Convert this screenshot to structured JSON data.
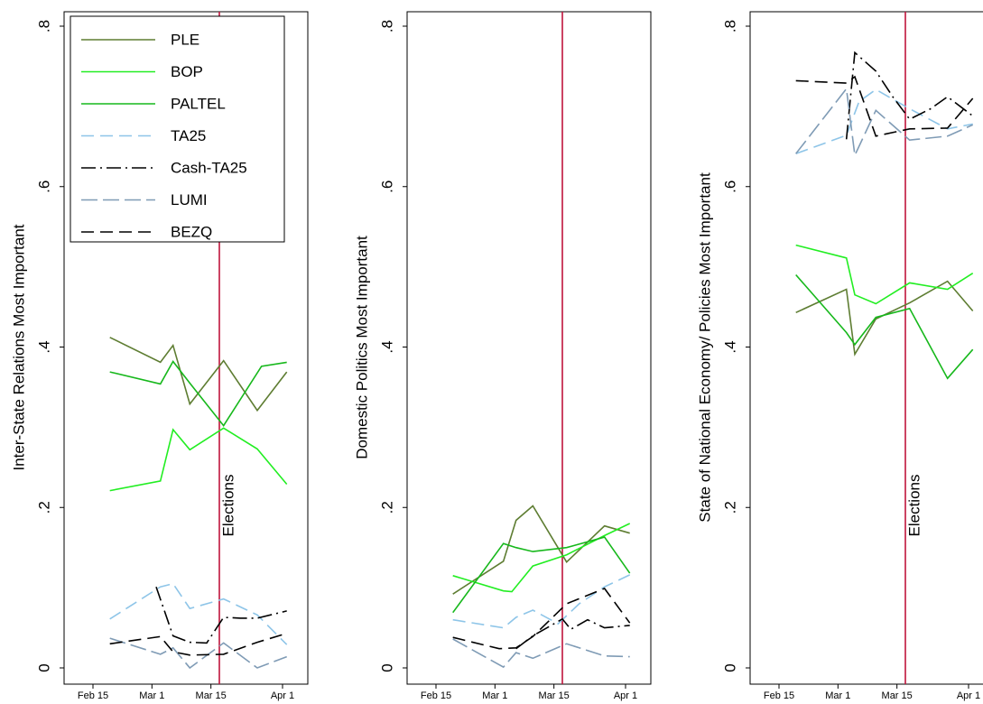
{
  "chart_data": {
    "type": "line",
    "xlim": [
      "2015-02-09",
      "2015-04-05"
    ],
    "ylim": [
      0,
      0.8
    ],
    "x_ticks": [
      {
        "date": "2015-02-15",
        "label": "Feb 15"
      },
      {
        "date": "2015-03-01",
        "label": "Mar 1"
      },
      {
        "date": "2015-03-15",
        "label": "Mar 15"
      },
      {
        "date": "2015-04-01",
        "label": "Apr 1"
      }
    ],
    "y_ticks": [
      {
        "value": 0,
        "label": "0"
      },
      {
        "value": 0.2,
        "label": ".2"
      },
      {
        "value": 0.4,
        "label": ".4"
      },
      {
        "value": 0.6,
        "label": ".6"
      },
      {
        "value": 0.8,
        "label": ".8"
      }
    ],
    "event_line": {
      "date": "2015-03-17",
      "label": "Elections",
      "color": "#c0143c"
    },
    "series_styles": [
      {
        "name": "PLE",
        "color": "#5e7d32",
        "dash": "solid"
      },
      {
        "name": "BOP",
        "color": "#22ee22",
        "dash": "solid"
      },
      {
        "name": "PALTEL",
        "color": "#17b81c",
        "dash": "solid"
      },
      {
        "name": "TA25",
        "color": "#8ec5e8",
        "dash": "dash"
      },
      {
        "name": "Cash-TA25",
        "color": "#000000",
        "dash": "dashdot"
      },
      {
        "name": "LUMI",
        "color": "#7f9bb5",
        "dash": "longdash"
      },
      {
        "name": "BEZQ",
        "color": "#000000",
        "dash": "dash"
      }
    ],
    "legend_position": "top-left of first panel",
    "panels": [
      {
        "ylabel": "Inter-State Relations Most Important",
        "show_event_label": true,
        "series": [
          {
            "name": "PLE",
            "x": [
              "2015-02-19",
              "2015-03-03",
              "2015-03-06",
              "2015-03-10",
              "2015-03-18",
              "2015-03-26",
              "2015-04-02"
            ],
            "y": [
              0.412,
              0.381,
              0.402,
              0.329,
              0.383,
              0.321,
              0.369
            ]
          },
          {
            "name": "BOP",
            "x": [
              "2015-02-19",
              "2015-03-03",
              "2015-03-06",
              "2015-03-10",
              "2015-03-18",
              "2015-03-26",
              "2015-04-02"
            ],
            "y": [
              0.221,
              0.233,
              0.297,
              0.272,
              0.299,
              0.273,
              0.229
            ]
          },
          {
            "name": "PALTEL",
            "x": [
              "2015-02-19",
              "2015-03-03",
              "2015-03-06",
              "2015-03-10",
              "2015-03-18",
              "2015-03-27",
              "2015-04-02"
            ],
            "y": [
              0.369,
              0.354,
              0.382,
              0.355,
              0.302,
              0.376,
              0.381
            ]
          },
          {
            "name": "TA25",
            "x": [
              "2015-02-19",
              "2015-03-03",
              "2015-03-06",
              "2015-03-10",
              "2015-03-18",
              "2015-03-26",
              "2015-04-02"
            ],
            "y": [
              0.061,
              0.101,
              0.105,
              0.074,
              0.086,
              0.066,
              0.029
            ]
          },
          {
            "name": "Cash-TA25",
            "x": [
              "2015-03-02",
              "2015-03-06",
              "2015-03-10",
              "2015-03-14",
              "2015-03-18",
              "2015-03-22",
              "2015-03-26",
              "2015-04-02"
            ],
            "y": [
              0.101,
              0.04,
              0.032,
              0.031,
              0.063,
              0.062,
              0.062,
              0.071
            ]
          },
          {
            "name": "LUMI",
            "x": [
              "2015-02-19",
              "2015-03-03",
              "2015-03-06",
              "2015-03-10",
              "2015-03-18",
              "2015-03-26",
              "2015-04-02"
            ],
            "y": [
              0.037,
              0.017,
              0.025,
              0.0,
              0.031,
              0.0,
              0.014
            ]
          },
          {
            "name": "BEZQ",
            "x": [
              "2015-02-19",
              "2015-03-03",
              "2015-03-06",
              "2015-03-10",
              "2015-03-18",
              "2015-03-26",
              "2015-04-02"
            ],
            "y": [
              0.03,
              0.039,
              0.02,
              0.016,
              0.017,
              0.032,
              0.043
            ]
          }
        ]
      },
      {
        "ylabel": "Domestic Politics Most Important",
        "show_event_label": false,
        "series": [
          {
            "name": "PLE",
            "x": [
              "2015-02-19",
              "2015-03-03",
              "2015-03-06",
              "2015-03-10",
              "2015-03-18",
              "2015-03-27",
              "2015-04-02"
            ],
            "y": [
              0.092,
              0.133,
              0.184,
              0.202,
              0.132,
              0.177,
              0.168
            ]
          },
          {
            "name": "BOP",
            "x": [
              "2015-02-19",
              "2015-03-03",
              "2015-03-05",
              "2015-03-10",
              "2015-03-18",
              "2015-03-27",
              "2015-04-02"
            ],
            "y": [
              0.115,
              0.096,
              0.095,
              0.127,
              0.141,
              0.165,
              0.18
            ]
          },
          {
            "name": "PALTEL",
            "x": [
              "2015-02-19",
              "2015-03-03",
              "2015-03-06",
              "2015-03-10",
              "2015-03-18",
              "2015-03-27",
              "2015-04-02"
            ],
            "y": [
              0.069,
              0.155,
              0.15,
              0.145,
              0.15,
              0.163,
              0.118
            ]
          },
          {
            "name": "TA25",
            "x": [
              "2015-02-19",
              "2015-03-03",
              "2015-03-06",
              "2015-03-10",
              "2015-03-16",
              "2015-03-21",
              "2015-03-27",
              "2015-04-02"
            ],
            "y": [
              0.06,
              0.05,
              0.063,
              0.072,
              0.055,
              0.08,
              0.101,
              0.116
            ]
          },
          {
            "name": "Cash-TA25",
            "x": [
              "2015-03-06",
              "2015-03-10",
              "2015-03-17",
              "2015-03-19",
              "2015-03-23",
              "2015-03-27",
              "2015-04-02"
            ],
            "y": [
              0.024,
              0.04,
              0.061,
              0.048,
              0.06,
              0.05,
              0.053
            ]
          },
          {
            "name": "LUMI",
            "x": [
              "2015-02-19",
              "2015-03-03",
              "2015-03-06",
              "2015-03-10",
              "2015-03-18",
              "2015-03-27",
              "2015-04-02"
            ],
            "y": [
              0.036,
              0.001,
              0.019,
              0.012,
              0.03,
              0.015,
              0.014
            ]
          },
          {
            "name": "BEZQ",
            "x": [
              "2015-02-19",
              "2015-03-02",
              "2015-03-06",
              "2015-03-10",
              "2015-03-18",
              "2015-03-27",
              "2015-04-02"
            ],
            "y": [
              0.038,
              0.024,
              0.025,
              0.039,
              0.08,
              0.099,
              0.056
            ]
          }
        ]
      },
      {
        "ylabel": "State of National Economy/ Policies Most Important",
        "show_event_label": true,
        "series": [
          {
            "name": "PLE",
            "x": [
              "2015-02-19",
              "2015-03-03",
              "2015-03-05",
              "2015-03-10",
              "2015-03-18",
              "2015-03-27",
              "2015-04-02"
            ],
            "y": [
              0.443,
              0.472,
              0.391,
              0.435,
              0.455,
              0.482,
              0.445
            ]
          },
          {
            "name": "BOP",
            "x": [
              "2015-02-19",
              "2015-03-03",
              "2015-03-05",
              "2015-03-10",
              "2015-03-18",
              "2015-03-27",
              "2015-04-02"
            ],
            "y": [
              0.527,
              0.511,
              0.465,
              0.454,
              0.48,
              0.472,
              0.492
            ]
          },
          {
            "name": "PALTEL",
            "x": [
              "2015-02-19",
              "2015-03-03",
              "2015-03-05",
              "2015-03-10",
              "2015-03-18",
              "2015-03-27",
              "2015-04-02"
            ],
            "y": [
              0.49,
              0.418,
              0.403,
              0.437,
              0.448,
              0.361,
              0.397
            ]
          },
          {
            "name": "TA25",
            "x": [
              "2015-02-19",
              "2015-03-03",
              "2015-03-06",
              "2015-03-10",
              "2015-03-18",
              "2015-03-27",
              "2015-04-02"
            ],
            "y": [
              0.641,
              0.664,
              0.706,
              0.721,
              0.697,
              0.672,
              0.678
            ]
          },
          {
            "name": "Cash-TA25",
            "x": [
              "2015-03-03",
              "2015-03-05",
              "2015-03-10",
              "2015-03-14",
              "2015-03-18",
              "2015-03-23",
              "2015-03-27",
              "2015-04-02"
            ],
            "y": [
              0.659,
              0.767,
              0.744,
              0.712,
              0.684,
              0.697,
              0.712,
              0.688
            ]
          },
          {
            "name": "LUMI",
            "x": [
              "2015-02-19",
              "2015-03-03",
              "2015-03-05",
              "2015-03-10",
              "2015-03-18",
              "2015-03-27",
              "2015-04-02"
            ],
            "y": [
              0.641,
              0.722,
              0.639,
              0.695,
              0.658,
              0.663,
              0.677
            ]
          },
          {
            "name": "BEZQ",
            "x": [
              "2015-02-19",
              "2015-03-03",
              "2015-03-05",
              "2015-03-10",
              "2015-03-18",
              "2015-03-27",
              "2015-04-02"
            ],
            "y": [
              0.732,
              0.729,
              0.737,
              0.663,
              0.672,
              0.673,
              0.71
            ]
          }
        ]
      }
    ]
  }
}
